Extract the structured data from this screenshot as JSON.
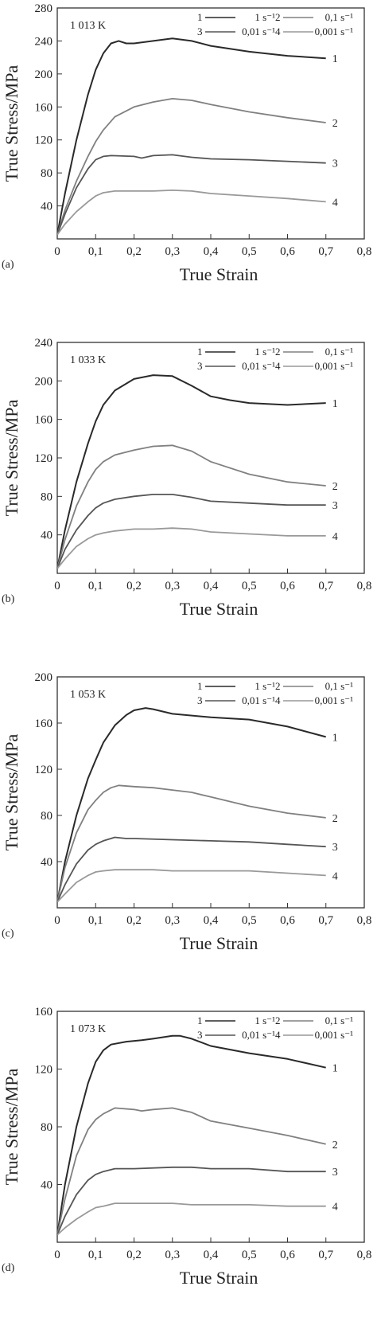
{
  "chart_data": [
    {
      "type": "line",
      "panel_label": "(a)",
      "temperature_label": "1 013 K",
      "xlabel": "True Strain",
      "ylabel": "True Stress/MPa",
      "xlim": [
        0,
        0.8
      ],
      "ylim": [
        0,
        280
      ],
      "xticks": [
        "0",
        "0,1",
        "0,2",
        "0,3",
        "0,4",
        "0,5",
        "0,6",
        "0,7",
        "0,8"
      ],
      "yticks": [
        "40",
        "80",
        "120",
        "160",
        "200",
        "240",
        "280"
      ],
      "legend": [
        {
          "id": "1",
          "rate": "1 s⁻¹"
        },
        {
          "id": "2",
          "rate": "0,1 s⁻¹"
        },
        {
          "id": "3",
          "rate": "0,01 s⁻¹"
        },
        {
          "id": "4",
          "rate": "0,001 s⁻¹"
        }
      ],
      "series": [
        {
          "name": "1",
          "color": "#2a2a2a",
          "x": [
            0,
            0.02,
            0.05,
            0.08,
            0.1,
            0.12,
            0.14,
            0.16,
            0.18,
            0.2,
            0.25,
            0.3,
            0.35,
            0.4,
            0.5,
            0.6,
            0.7
          ],
          "y": [
            5,
            55,
            120,
            175,
            205,
            225,
            237,
            240,
            237,
            237,
            240,
            243,
            240,
            234,
            227,
            222,
            219
          ]
        },
        {
          "name": "2",
          "color": "#808080",
          "x": [
            0,
            0.02,
            0.05,
            0.08,
            0.1,
            0.12,
            0.15,
            0.2,
            0.25,
            0.3,
            0.35,
            0.4,
            0.5,
            0.6,
            0.7
          ],
          "y": [
            5,
            35,
            70,
            100,
            118,
            132,
            148,
            160,
            166,
            170,
            168,
            163,
            154,
            147,
            141
          ]
        },
        {
          "name": "3",
          "color": "#555555",
          "x": [
            0,
            0.02,
            0.05,
            0.08,
            0.1,
            0.12,
            0.14,
            0.2,
            0.22,
            0.25,
            0.3,
            0.35,
            0.4,
            0.5,
            0.6,
            0.7
          ],
          "y": [
            5,
            30,
            62,
            85,
            96,
            100,
            101,
            100,
            98,
            101,
            102,
            99,
            97,
            96,
            94,
            92
          ]
        },
        {
          "name": "4",
          "color": "#999999",
          "x": [
            0,
            0.02,
            0.05,
            0.08,
            0.1,
            0.12,
            0.15,
            0.2,
            0.25,
            0.3,
            0.35,
            0.4,
            0.5,
            0.6,
            0.7
          ],
          "y": [
            5,
            18,
            33,
            45,
            52,
            56,
            58,
            58,
            58,
            59,
            58,
            55,
            52,
            49,
            45
          ]
        }
      ]
    },
    {
      "type": "line",
      "panel_label": "(b)",
      "temperature_label": "1 033 K",
      "xlabel": "True Strain",
      "ylabel": "True Stress/MPa",
      "xlim": [
        0,
        0.8
      ],
      "ylim": [
        0,
        240
      ],
      "xticks": [
        "0",
        "0,1",
        "0,2",
        "0,3",
        "0,4",
        "0,5",
        "0,6",
        "0,7",
        "0,8"
      ],
      "yticks": [
        "40",
        "80",
        "120",
        "160",
        "200",
        "240"
      ],
      "legend": [
        {
          "id": "1",
          "rate": "1 s⁻¹"
        },
        {
          "id": "2",
          "rate": "0,1 s⁻¹"
        },
        {
          "id": "3",
          "rate": "0,01 s⁻¹"
        },
        {
          "id": "4",
          "rate": "0,001 s⁻¹"
        }
      ],
      "series": [
        {
          "name": "1",
          "color": "#2a2a2a",
          "x": [
            0,
            0.02,
            0.05,
            0.08,
            0.1,
            0.12,
            0.15,
            0.2,
            0.25,
            0.3,
            0.35,
            0.4,
            0.45,
            0.5,
            0.6,
            0.7
          ],
          "y": [
            5,
            45,
            95,
            135,
            158,
            175,
            190,
            202,
            206,
            205,
            195,
            184,
            180,
            177,
            175,
            177
          ]
        },
        {
          "name": "2",
          "color": "#808080",
          "x": [
            0,
            0.02,
            0.05,
            0.08,
            0.1,
            0.12,
            0.15,
            0.2,
            0.25,
            0.3,
            0.35,
            0.4,
            0.5,
            0.6,
            0.7
          ],
          "y": [
            5,
            35,
            70,
            95,
            108,
            116,
            123,
            128,
            132,
            133,
            127,
            116,
            103,
            95,
            91
          ]
        },
        {
          "name": "3",
          "color": "#555555",
          "x": [
            0,
            0.02,
            0.05,
            0.08,
            0.1,
            0.12,
            0.15,
            0.2,
            0.25,
            0.3,
            0.35,
            0.4,
            0.5,
            0.6,
            0.7
          ],
          "y": [
            5,
            25,
            45,
            60,
            68,
            73,
            77,
            80,
            82,
            82,
            79,
            75,
            73,
            71,
            71
          ]
        },
        {
          "name": "4",
          "color": "#999999",
          "x": [
            0,
            0.02,
            0.05,
            0.08,
            0.1,
            0.12,
            0.15,
            0.2,
            0.25,
            0.3,
            0.35,
            0.4,
            0.5,
            0.6,
            0.7
          ],
          "y": [
            5,
            15,
            28,
            36,
            40,
            42,
            44,
            46,
            46,
            47,
            46,
            43,
            41,
            39,
            39
          ]
        }
      ]
    },
    {
      "type": "line",
      "panel_label": "(c)",
      "temperature_label": "1 053 K",
      "xlabel": "True Strain",
      "ylabel": "True Stress/MPa",
      "xlim": [
        0,
        0.8
      ],
      "ylim": [
        0,
        200
      ],
      "xticks": [
        "0",
        "0,1",
        "0,2",
        "0,3",
        "0,4",
        "0,5",
        "0,6",
        "0,7",
        "0,8"
      ],
      "yticks": [
        "40",
        "80",
        "120",
        "160",
        "200"
      ],
      "legend": [
        {
          "id": "1",
          "rate": "1 s⁻¹"
        },
        {
          "id": "2",
          "rate": "0,1 s⁻¹"
        },
        {
          "id": "3",
          "rate": "0,01 s⁻¹"
        },
        {
          "id": "4",
          "rate": "0,001 s⁻¹"
        }
      ],
      "series": [
        {
          "name": "1",
          "color": "#2a2a2a",
          "x": [
            0,
            0.02,
            0.05,
            0.08,
            0.1,
            0.12,
            0.15,
            0.18,
            0.2,
            0.23,
            0.25,
            0.3,
            0.4,
            0.5,
            0.6,
            0.7
          ],
          "y": [
            5,
            40,
            80,
            112,
            128,
            143,
            158,
            167,
            171,
            173,
            172,
            168,
            165,
            163,
            157,
            148
          ]
        },
        {
          "name": "2",
          "color": "#808080",
          "x": [
            0,
            0.02,
            0.05,
            0.08,
            0.1,
            0.12,
            0.14,
            0.16,
            0.2,
            0.25,
            0.3,
            0.35,
            0.4,
            0.5,
            0.6,
            0.7
          ],
          "y": [
            5,
            35,
            65,
            85,
            93,
            100,
            104,
            106,
            105,
            104,
            102,
            100,
            96,
            88,
            82,
            78
          ]
        },
        {
          "name": "3",
          "color": "#555555",
          "x": [
            0,
            0.02,
            0.05,
            0.08,
            0.1,
            0.12,
            0.15,
            0.18,
            0.2,
            0.3,
            0.4,
            0.5,
            0.6,
            0.7
          ],
          "y": [
            5,
            20,
            38,
            50,
            55,
            58,
            61,
            60,
            60,
            59,
            58,
            57,
            55,
            53
          ]
        },
        {
          "name": "4",
          "color": "#999999",
          "x": [
            0,
            0.02,
            0.05,
            0.08,
            0.1,
            0.12,
            0.15,
            0.2,
            0.25,
            0.3,
            0.4,
            0.5,
            0.6,
            0.7
          ],
          "y": [
            5,
            12,
            22,
            28,
            31,
            32,
            33,
            33,
            33,
            32,
            32,
            32,
            30,
            28
          ]
        }
      ]
    },
    {
      "type": "line",
      "panel_label": "(d)",
      "temperature_label": "1 073 K",
      "xlabel": "True Strain",
      "ylabel": "True Stress/MPa",
      "xlim": [
        0,
        0.8
      ],
      "ylim": [
        0,
        160
      ],
      "xticks": [
        "0",
        "0,1",
        "0,2",
        "0,3",
        "0,4",
        "0,5",
        "0,6",
        "0,7",
        "0,8"
      ],
      "yticks": [
        "40",
        "80",
        "120",
        "160"
      ],
      "legend": [
        {
          "id": "1",
          "rate": "1 s⁻¹"
        },
        {
          "id": "2",
          "rate": "0,1 s⁻¹"
        },
        {
          "id": "3",
          "rate": "0,01 s⁻¹"
        },
        {
          "id": "4",
          "rate": "0,001 s⁻¹"
        }
      ],
      "series": [
        {
          "name": "1",
          "color": "#2a2a2a",
          "x": [
            0,
            0.02,
            0.05,
            0.08,
            0.1,
            0.12,
            0.14,
            0.18,
            0.22,
            0.25,
            0.3,
            0.32,
            0.35,
            0.4,
            0.5,
            0.6,
            0.7
          ],
          "y": [
            5,
            40,
            80,
            110,
            125,
            133,
            137,
            139,
            140,
            141,
            143,
            143,
            141,
            136,
            131,
            127,
            121
          ]
        },
        {
          "name": "2",
          "color": "#808080",
          "x": [
            0,
            0.02,
            0.05,
            0.08,
            0.1,
            0.12,
            0.15,
            0.2,
            0.22,
            0.25,
            0.3,
            0.35,
            0.4,
            0.5,
            0.6,
            0.7
          ],
          "y": [
            5,
            30,
            60,
            78,
            85,
            89,
            93,
            92,
            91,
            92,
            93,
            90,
            84,
            79,
            74,
            68
          ]
        },
        {
          "name": "3",
          "color": "#555555",
          "x": [
            0,
            0.02,
            0.05,
            0.08,
            0.1,
            0.12,
            0.15,
            0.2,
            0.3,
            0.35,
            0.4,
            0.5,
            0.6,
            0.7
          ],
          "y": [
            5,
            18,
            33,
            43,
            47,
            49,
            51,
            51,
            52,
            52,
            51,
            51,
            49,
            49
          ]
        },
        {
          "name": "4",
          "color": "#999999",
          "x": [
            0,
            0.02,
            0.05,
            0.08,
            0.1,
            0.12,
            0.15,
            0.18,
            0.2,
            0.3,
            0.35,
            0.4,
            0.5,
            0.6,
            0.7
          ],
          "y": [
            5,
            10,
            16,
            21,
            24,
            25,
            27,
            27,
            27,
            27,
            26,
            26,
            26,
            25,
            25
          ]
        }
      ]
    }
  ]
}
